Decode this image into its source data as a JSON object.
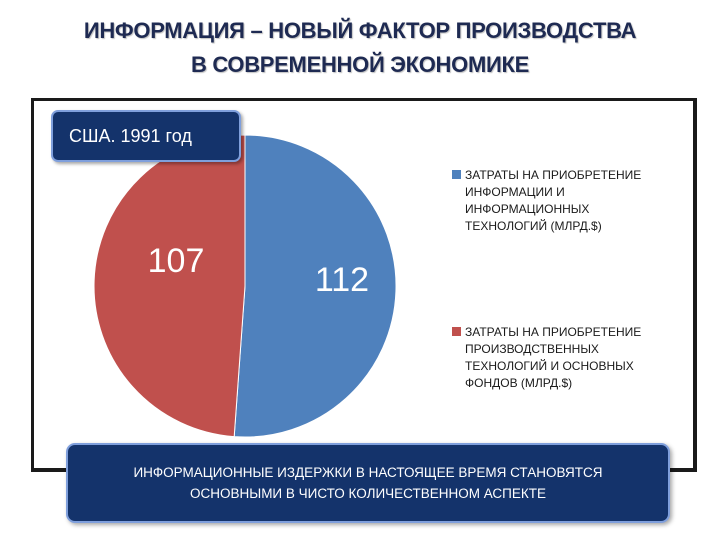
{
  "header": {
    "title_line1": "ИНФОРМАЦИЯ – НОВЫЙ ФАКТОР ПРОИЗВОДСТВА",
    "title_line2": "В СОВРЕМЕННОЙ ЭКОНОМИКЕ"
  },
  "chart_data": {
    "type": "pie",
    "title": "США. 1991 год",
    "slices": [
      {
        "name": "ЗАТРАТЫ НА ПРИОБРЕТЕНИЕ ИНФОРМАЦИИ И ИНФОРМАЦИОННЫХ ТЕХНОЛОГИЙ (МЛРД.$)",
        "value": 112,
        "label": "112",
        "color": "#4f81bd"
      },
      {
        "name": "ЗАТРАТЫ НА ПРИОБРЕТЕНИЕ ПРОИЗВОДСТВЕННЫХ ТЕХНОЛОГИЙ И ОСНОВНЫХ ФОНДОВ (МЛРД.$)",
        "value": 107,
        "label": "107",
        "color": "#c0504d"
      }
    ],
    "start_angle_deg": 0,
    "direction": "clockwise",
    "legend_position": "right"
  },
  "legend": {
    "item1_lines": [
      "ЗАТРАТЫ НА ПРИОБРЕТЕНИЕ",
      "ИНФОРМАЦИИ И",
      "ИНФОРМАЦИОННЫХ",
      "ТЕХНОЛОГИЙ (МЛРД.$)"
    ],
    "item2_lines": [
      "ЗАТРАТЫ НА ПРИОБРЕТЕНИЕ",
      "ПРОИЗВОДСТВЕННЫХ",
      "ТЕХНОЛОГИЙ И ОСНОВНЫХ",
      "ФОНДОВ (МЛРД.$)"
    ]
  },
  "footer": {
    "line1": "ИНФОРМАЦИОННЫЕ ИЗДЕРЖКИ В НАСТОЯЩЕЕ ВРЕМЯ СТАНОВЯТСЯ",
    "line2": "ОСНОВНЫМИ В ЧИСТО КОЛИЧЕСТВЕННОМ АСПЕКТЕ"
  }
}
